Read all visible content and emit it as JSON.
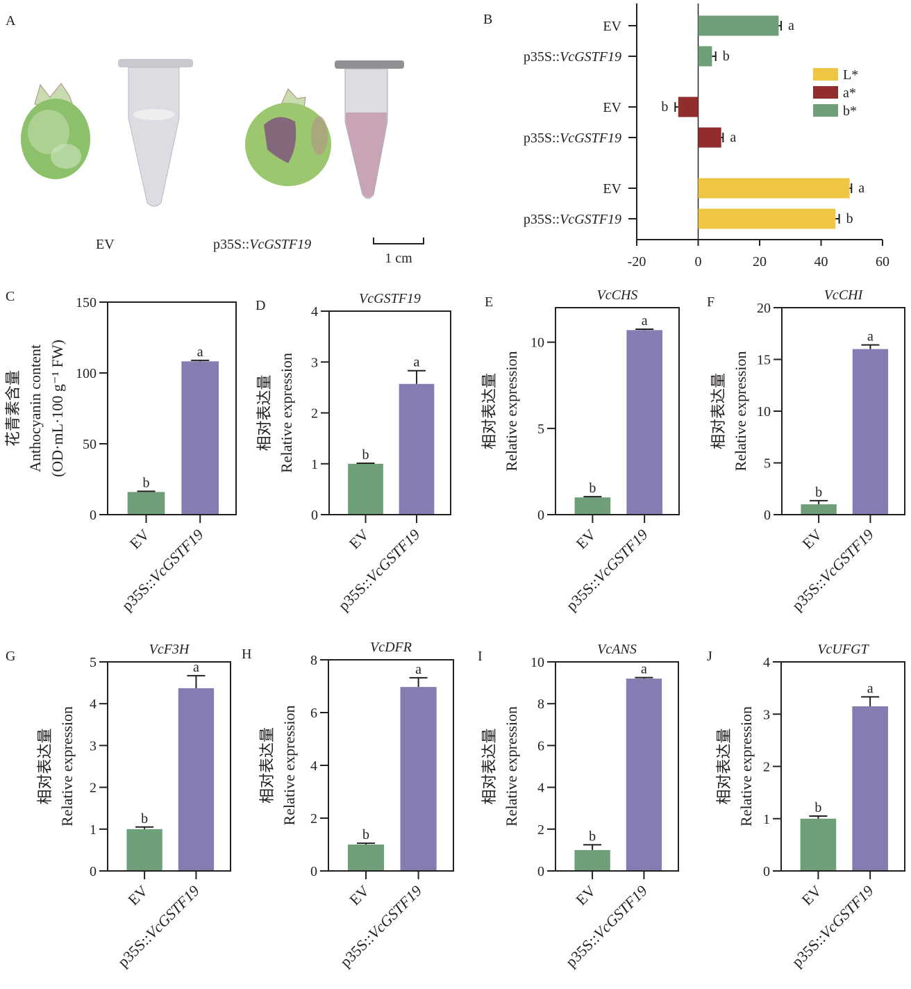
{
  "panel_a": {
    "label": "A",
    "ev_label": "EV",
    "construct_label_plain": "p35S::",
    "construct_label_italic": "VcGSTF19",
    "scale_bar_label": "1 cm",
    "colors": {
      "fruit_green": "#8cc06a",
      "tube_clear": "#dcdde2",
      "tube_pink": "#c9a3b6",
      "blotch_purple": "#7d4f7e"
    }
  },
  "chart_data": [
    {
      "id": "B",
      "panel_label": "B",
      "type": "bar",
      "orientation": "horizontal",
      "title": "",
      "xlabel": "",
      "ylabel": "",
      "xlim": [
        -20,
        60
      ],
      "xticks": [
        -20,
        0,
        20,
        40,
        60
      ],
      "grid": false,
      "legend_position": "right",
      "legend": [
        {
          "name": "L*",
          "color": "#eec643"
        },
        {
          "name": "a*",
          "color": "#922d2d"
        },
        {
          "name": "b*",
          "color": "#6f9f79"
        }
      ],
      "rows": [
        {
          "category": "EV",
          "italic": "",
          "series": "b*",
          "value": 26.2,
          "error": 0.8,
          "sig": "a"
        },
        {
          "category": "p35S::",
          "italic": "VcGSTF19",
          "series": "b*",
          "value": 4.5,
          "error": 1.2,
          "sig": "b"
        },
        {
          "category": "EV",
          "italic": "",
          "series": "a*",
          "value": -6.5,
          "error": 1.0,
          "sig": "b"
        },
        {
          "category": "p35S::",
          "italic": "VcGSTF19",
          "series": "a*",
          "value": 7.5,
          "error": 0.6,
          "sig": "a"
        },
        {
          "category": "EV",
          "italic": "",
          "series": "L*",
          "value": 49.3,
          "error": 0.6,
          "sig": "a"
        },
        {
          "category": "p35S::",
          "italic": "VcGSTF19",
          "series": "L*",
          "value": 44.7,
          "error": 1.2,
          "sig": "b"
        }
      ]
    },
    {
      "id": "C",
      "panel_label": "C",
      "type": "bar",
      "title": "",
      "ylabel_cn": "花青素含量",
      "ylabel": "Anthocyanin content",
      "ylabel_unit": "(OD·mL·100 g⁻¹ FW)",
      "ylim": [
        0,
        150
      ],
      "yticks": [
        0,
        50,
        100,
        150
      ],
      "grid": false,
      "categories": [
        "EV",
        "p35S::VcGSTF19"
      ],
      "values": [
        16.0,
        108.2
      ],
      "errors": [
        0.5,
        0.7
      ],
      "sig": [
        "b",
        "a"
      ],
      "colors": [
        "#6f9f79",
        "#857cb1"
      ]
    },
    {
      "id": "D",
      "panel_label": "D",
      "type": "bar",
      "title": "VcGSTF19",
      "ylabel_cn": "相对表达量",
      "ylabel": "Relative expression",
      "ylim": [
        0,
        4
      ],
      "yticks": [
        0,
        1,
        2,
        3,
        4
      ],
      "grid": false,
      "categories": [
        "EV",
        "p35S::VcGSTF19"
      ],
      "values": [
        1.0,
        2.57
      ],
      "errors": [
        0.01,
        0.26
      ],
      "sig": [
        "b",
        "a"
      ],
      "colors": [
        "#6f9f79",
        "#857cb1"
      ]
    },
    {
      "id": "E",
      "panel_label": "E",
      "type": "bar",
      "title": "VcCHS",
      "ylabel_cn": "相对表达量",
      "ylabel": "Relative expression",
      "ylim": [
        0,
        12
      ],
      "yticks": [
        0,
        5,
        10
      ],
      "grid": false,
      "categories": [
        "EV",
        "p35S::VcGSTF19"
      ],
      "values": [
        1.0,
        10.7
      ],
      "errors": [
        0.04,
        0.05
      ],
      "sig": [
        "b",
        "a"
      ],
      "colors": [
        "#6f9f79",
        "#857cb1"
      ]
    },
    {
      "id": "F",
      "panel_label": "F",
      "type": "bar",
      "title": "VcCHI",
      "ylabel_cn": "相对表达量",
      "ylabel": "Relative expression",
      "ylim": [
        0,
        20
      ],
      "yticks": [
        0,
        5,
        10,
        15,
        20
      ],
      "grid": false,
      "categories": [
        "EV",
        "p35S::VcGSTF19"
      ],
      "values": [
        1.0,
        16.0
      ],
      "errors": [
        0.35,
        0.4
      ],
      "sig": [
        "b",
        "a"
      ],
      "colors": [
        "#6f9f79",
        "#857cb1"
      ]
    },
    {
      "id": "G",
      "panel_label": "G",
      "type": "bar",
      "title": "VcF3H",
      "ylabel_cn": "相对表达量",
      "ylabel": "Relative expression",
      "ylim": [
        0,
        5
      ],
      "yticks": [
        0,
        1,
        2,
        3,
        4,
        5
      ],
      "grid": false,
      "categories": [
        "EV",
        "p35S::VcGSTF19"
      ],
      "values": [
        1.0,
        4.37
      ],
      "errors": [
        0.05,
        0.3
      ],
      "sig": [
        "b",
        "a"
      ],
      "colors": [
        "#6f9f79",
        "#857cb1"
      ]
    },
    {
      "id": "H",
      "panel_label": "H",
      "type": "bar",
      "title": "VcDFR",
      "ylabel_cn": "相对表达量",
      "ylabel": "Relative expression",
      "ylim": [
        0,
        8
      ],
      "yticks": [
        0,
        2,
        4,
        6,
        8
      ],
      "grid": false,
      "categories": [
        "EV",
        "p35S::VcGSTF19"
      ],
      "values": [
        1.0,
        6.97
      ],
      "errors": [
        0.05,
        0.35
      ],
      "sig": [
        "b",
        "a"
      ],
      "colors": [
        "#6f9f79",
        "#857cb1"
      ]
    },
    {
      "id": "I",
      "panel_label": "I",
      "type": "bar",
      "title": "VcANS",
      "ylabel_cn": "相对表达量",
      "ylabel": "Relative expression",
      "ylim": [
        0,
        10
      ],
      "yticks": [
        0,
        2,
        4,
        6,
        8,
        10
      ],
      "grid": false,
      "categories": [
        "EV",
        "p35S::VcGSTF19"
      ],
      "values": [
        1.0,
        9.2
      ],
      "errors": [
        0.25,
        0.05
      ],
      "sig": [
        "b",
        "a"
      ],
      "colors": [
        "#6f9f79",
        "#857cb1"
      ]
    },
    {
      "id": "J",
      "panel_label": "J",
      "type": "bar",
      "title": "VcUFGT",
      "ylabel_cn": "相对表达量",
      "ylabel": "Relative expression",
      "ylim": [
        0,
        4
      ],
      "yticks": [
        0,
        1,
        2,
        3,
        4
      ],
      "grid": false,
      "categories": [
        "EV",
        "p35S::VcGSTF19"
      ],
      "values": [
        1.0,
        3.15
      ],
      "errors": [
        0.05,
        0.18
      ],
      "sig": [
        "b",
        "a"
      ],
      "colors": [
        "#6f9f79",
        "#857cb1"
      ]
    }
  ]
}
